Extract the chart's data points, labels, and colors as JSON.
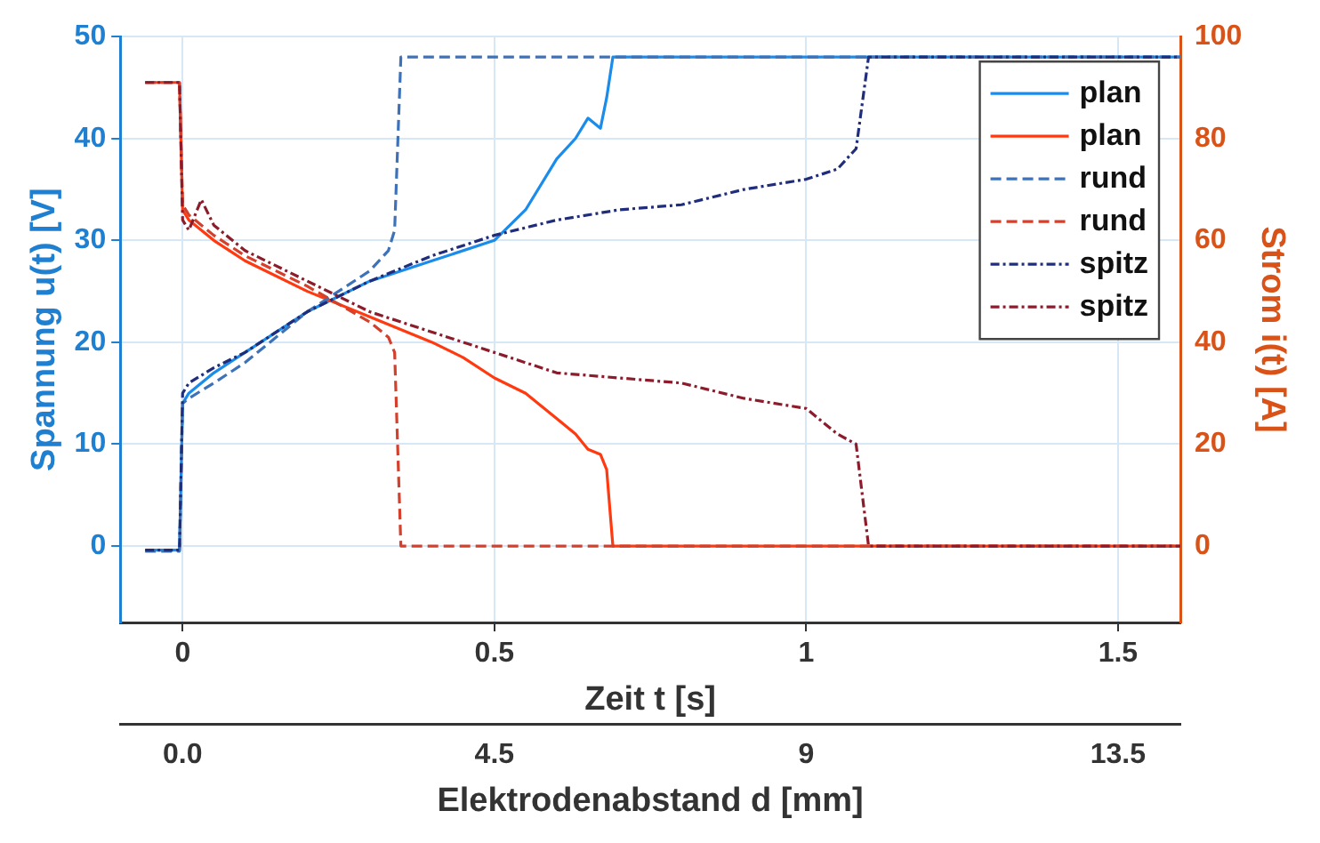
{
  "chart_data": {
    "type": "line",
    "xlabel": "Zeit t [s]",
    "ylabel": "Spannung u(t) [V]",
    "y2label": "Strom i(t) [A]",
    "x2label": "Elektrodenabstand d [mm]",
    "xlim": [
      -0.1,
      1.6
    ],
    "xticks": [
      0,
      0.5,
      1,
      1.5
    ],
    "x2lim": [
      -0.9,
      14.4
    ],
    "x2ticks": [
      {
        "value": 0,
        "label": "0.0"
      },
      4.5,
      9,
      13.5
    ],
    "ylim": [
      -7.5,
      50
    ],
    "yticks": [
      0,
      10,
      20,
      30,
      40,
      50
    ],
    "y2lim": [
      -15,
      100
    ],
    "y2ticks": [
      0,
      20,
      40,
      60,
      80,
      100
    ],
    "grid": true,
    "legend": "top right",
    "marker": "none",
    "series": [
      {
        "name": "plan",
        "color": "#1a8ceb",
        "line_style": "solid",
        "x": [
          -0.06,
          -0.005,
          0,
          0.01,
          0.05,
          0.1,
          0.2,
          0.3,
          0.4,
          0.5,
          0.55,
          0.6,
          0.63,
          0.65,
          0.67,
          0.68,
          0.69,
          0.8,
          1.0,
          1.2,
          1.4,
          1.6
        ],
        "values": [
          -0.4,
          -0.4,
          14,
          15,
          17,
          19,
          23,
          26,
          28,
          30,
          33,
          38,
          40,
          42,
          41,
          44,
          48,
          48,
          48,
          48,
          48,
          48
        ]
      },
      {
        "name": "plan",
        "color": "#ff3a10",
        "line_style": "solid",
        "axis": "y2",
        "x": [
          -0.06,
          -0.005,
          0,
          0.01,
          0.05,
          0.1,
          0.2,
          0.3,
          0.4,
          0.45,
          0.5,
          0.55,
          0.6,
          0.63,
          0.65,
          0.67,
          0.68,
          0.69,
          0.8,
          1.0,
          1.2,
          1.4,
          1.6
        ],
        "values": [
          91,
          91,
          66,
          64,
          60,
          56,
          50,
          45,
          40,
          37,
          33,
          30,
          25,
          22,
          19,
          18,
          15,
          0,
          0,
          0,
          0,
          0,
          0
        ]
      },
      {
        "name": "rund",
        "color": "#3d72b8",
        "line_style": "dashed",
        "x": [
          -0.06,
          -0.005,
          0,
          0.01,
          0.05,
          0.1,
          0.2,
          0.3,
          0.33,
          0.34,
          0.35,
          0.5,
          0.8,
          1.0,
          1.2,
          1.4,
          1.6
        ],
        "values": [
          -0.5,
          -0.5,
          14,
          14.5,
          16,
          18,
          23,
          27,
          29,
          31,
          48,
          48,
          48,
          48,
          48,
          48,
          48
        ]
      },
      {
        "name": "rund",
        "color": "#d4402c",
        "line_style": "dashed",
        "axis": "y2",
        "x": [
          -0.06,
          -0.005,
          0,
          0.01,
          0.05,
          0.1,
          0.2,
          0.3,
          0.33,
          0.34,
          0.35,
          0.5,
          0.8,
          1.0,
          1.2,
          1.4,
          1.6
        ],
        "values": [
          91,
          91,
          67,
          65,
          61,
          57,
          51,
          44,
          41,
          38,
          0,
          0,
          0,
          0,
          0,
          0,
          0
        ]
      },
      {
        "name": "spitz",
        "color": "#1f2d7a",
        "line_style": "dashdot",
        "x": [
          -0.06,
          -0.005,
          0,
          0.01,
          0.05,
          0.1,
          0.2,
          0.3,
          0.4,
          0.5,
          0.6,
          0.7,
          0.8,
          0.9,
          1.0,
          1.05,
          1.08,
          1.1,
          1.2,
          1.4,
          1.6
        ],
        "values": [
          -0.4,
          -0.4,
          15,
          16,
          17.5,
          19,
          23,
          26,
          28.5,
          30.5,
          32,
          33,
          33.5,
          35,
          36,
          37,
          39,
          48,
          48,
          48,
          48
        ]
      },
      {
        "name": "spitz",
        "color": "#8c1c2c",
        "line_style": "dashdot",
        "axis": "y2",
        "x": [
          -0.06,
          -0.005,
          0,
          0.01,
          0.03,
          0.05,
          0.1,
          0.2,
          0.3,
          0.4,
          0.5,
          0.6,
          0.7,
          0.8,
          0.9,
          1.0,
          1.05,
          1.08,
          1.1,
          1.2,
          1.4,
          1.6
        ],
        "values": [
          91,
          91,
          64,
          62,
          68,
          63,
          58,
          52,
          46,
          42,
          38,
          34,
          33,
          32,
          29,
          27,
          22,
          20,
          0,
          0,
          0,
          0
        ]
      }
    ]
  }
}
